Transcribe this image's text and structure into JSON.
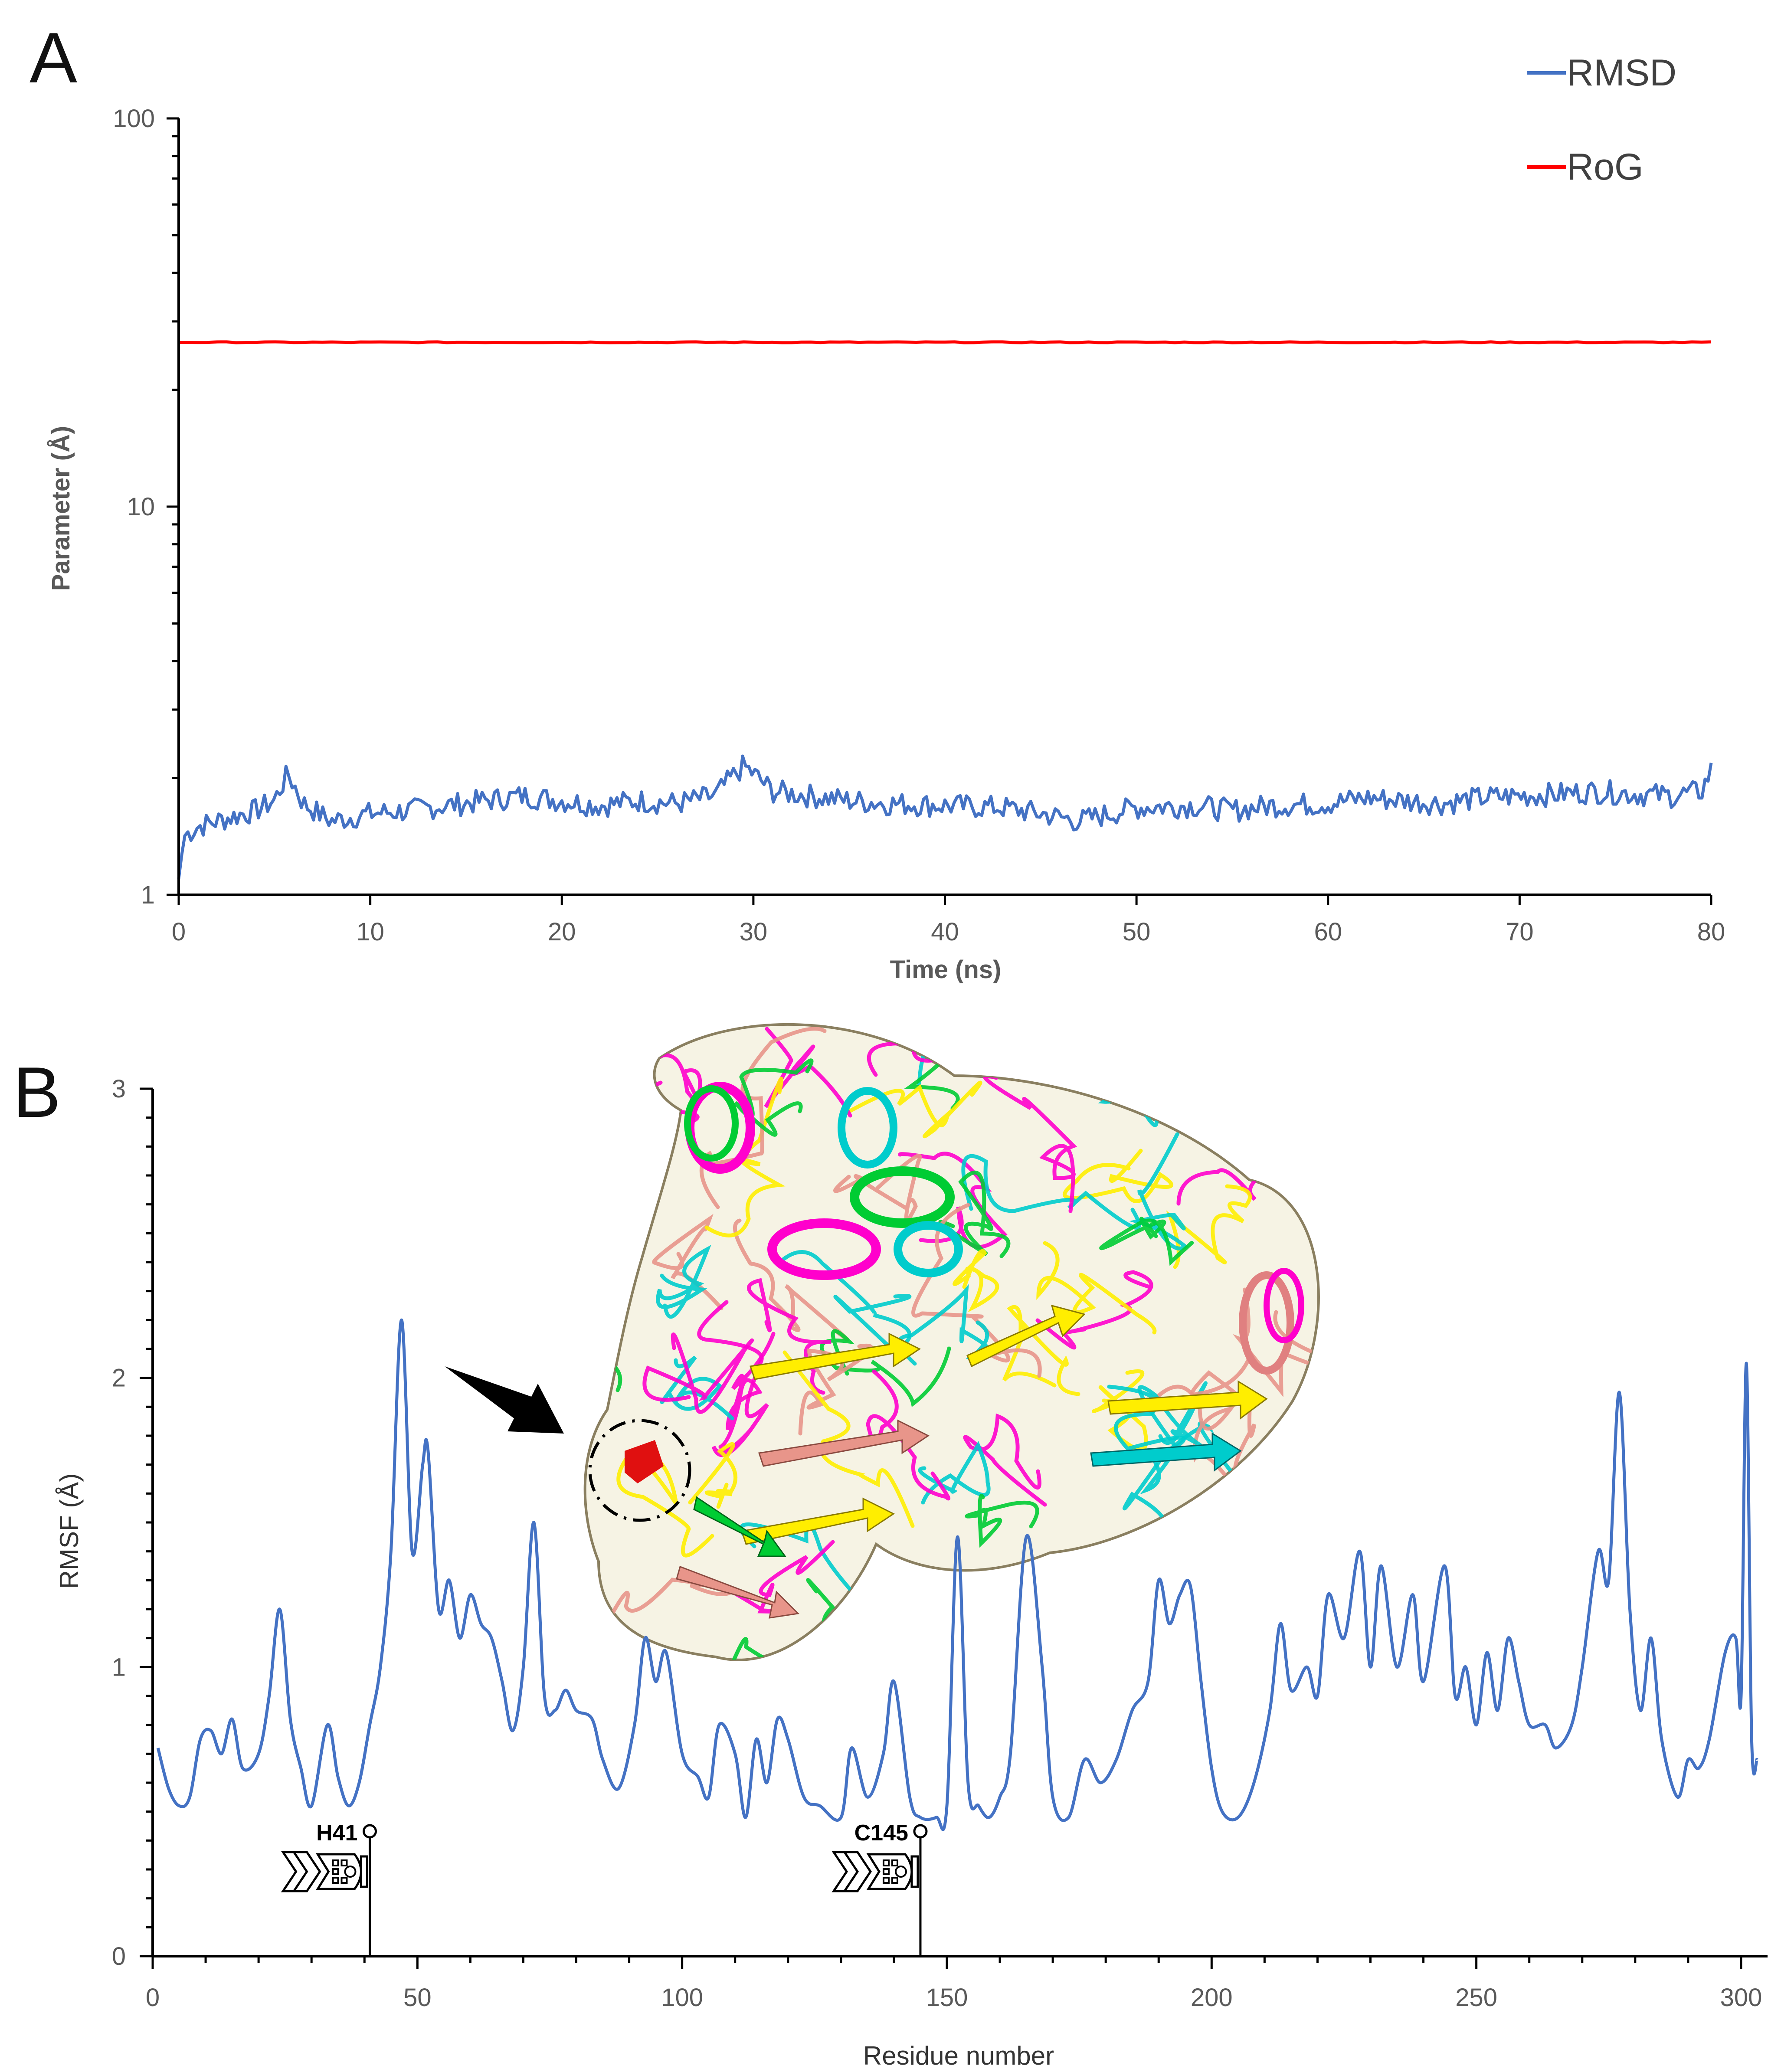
{
  "panels": {
    "a_label": "A",
    "b_label": "B"
  },
  "colors": {
    "rmsd": "#4472C4",
    "rog": "#FF0000",
    "rmsf": "#4472C4",
    "axis": "#000000",
    "text": "#595959"
  },
  "chart_data": [
    {
      "id": "panel-A",
      "type": "line",
      "title": "",
      "xlabel": "Time (ns)",
      "ylabel": "Parameter (Å)",
      "yscale": "log",
      "xlim": [
        0,
        80
      ],
      "ylim": [
        1,
        100
      ],
      "x_ticks": [
        0,
        10,
        20,
        30,
        40,
        50,
        60,
        70,
        80
      ],
      "y_ticks": [
        1,
        10,
        100
      ],
      "y_tick_labels": [
        "1",
        "10",
        "100"
      ],
      "legend": {
        "placement": "top-right",
        "entries": [
          "RMSD",
          "RoG"
        ]
      },
      "series": [
        {
          "name": "RMSD",
          "x": [
            0,
            0.3,
            1,
            2,
            3,
            4,
            5,
            5.7,
            6.5,
            7.5,
            8,
            10,
            12,
            14,
            16,
            18,
            20,
            22,
            24,
            26,
            28,
            29.5,
            31,
            33,
            35,
            37,
            40,
            43,
            45,
            47,
            50,
            53,
            55,
            57,
            60,
            62,
            64,
            66,
            68,
            70,
            72,
            74,
            76,
            78,
            79.5,
            80
          ],
          "y": [
            1.1,
            1.42,
            1.5,
            1.55,
            1.6,
            1.65,
            1.75,
            2.05,
            1.72,
            1.6,
            1.55,
            1.62,
            1.65,
            1.7,
            1.75,
            1.8,
            1.75,
            1.7,
            1.75,
            1.72,
            1.8,
            2.15,
            1.85,
            1.8,
            1.75,
            1.72,
            1.7,
            1.68,
            1.62,
            1.55,
            1.68,
            1.7,
            1.65,
            1.7,
            1.72,
            1.78,
            1.75,
            1.72,
            1.78,
            1.8,
            1.82,
            1.85,
            1.82,
            1.8,
            1.85,
            2.1
          ]
        },
        {
          "name": "RoG",
          "x": [
            0,
            80
          ],
          "y": [
            26.5,
            26.5
          ]
        }
      ]
    },
    {
      "id": "panel-B",
      "type": "line",
      "title": "",
      "xlabel": "Residue number",
      "ylabel": "RMSF (Å)",
      "xlim": [
        0,
        305
      ],
      "ylim": [
        0,
        3
      ],
      "x_ticks": [
        0,
        50,
        100,
        150,
        200,
        250,
        300
      ],
      "y_ticks": [
        0,
        1,
        2,
        3
      ],
      "annotations": [
        {
          "label": "H41",
          "x": 41
        },
        {
          "label": "C145",
          "x": 145
        }
      ],
      "series": [
        {
          "name": "RMSF",
          "x": [
            1,
            3,
            5,
            7,
            9,
            11,
            13,
            15,
            17,
            20,
            22,
            24,
            26,
            28,
            30,
            33,
            35,
            37,
            39,
            41,
            43,
            45,
            47,
            49,
            51,
            52,
            54,
            56,
            58,
            60,
            62,
            64,
            66,
            68,
            70,
            72,
            74,
            76,
            78,
            80,
            83,
            85,
            88,
            91,
            93,
            95,
            97,
            100,
            103,
            105,
            107,
            110,
            112,
            114,
            116,
            118,
            120,
            123,
            126,
            130,
            132,
            135,
            138,
            140,
            143,
            145,
            148,
            150,
            152,
            154,
            156,
            158,
            160,
            162,
            165,
            168,
            170,
            173,
            176,
            179,
            182,
            185,
            188,
            190,
            192,
            194,
            196,
            198,
            200,
            202,
            205,
            208,
            211,
            213,
            215,
            218,
            220,
            222,
            225,
            228,
            230,
            232,
            235,
            238,
            240,
            244,
            246,
            248,
            250,
            252,
            254,
            256,
            258,
            260,
            263,
            265,
            268,
            270,
            273,
            275,
            277,
            279,
            281,
            283,
            285,
            288,
            290,
            292,
            294,
            297,
            299,
            300,
            301,
            302,
            303
          ],
          "y": [
            0.72,
            0.58,
            0.52,
            0.55,
            0.75,
            0.78,
            0.7,
            0.82,
            0.65,
            0.7,
            0.9,
            1.2,
            0.82,
            0.65,
            0.52,
            0.8,
            0.62,
            0.52,
            0.6,
            0.8,
            1.0,
            1.4,
            2.2,
            1.4,
            1.7,
            1.75,
            1.2,
            1.3,
            1.1,
            1.25,
            1.15,
            1.1,
            0.95,
            0.78,
            1.0,
            1.5,
            0.9,
            0.85,
            0.92,
            0.85,
            0.82,
            0.68,
            0.58,
            0.8,
            1.1,
            0.95,
            1.05,
            0.7,
            0.62,
            0.55,
            0.8,
            0.7,
            0.48,
            0.75,
            0.6,
            0.82,
            0.75,
            0.55,
            0.52,
            0.48,
            0.72,
            0.55,
            0.7,
            0.95,
            0.55,
            0.48,
            0.48,
            0.52,
            1.45,
            0.6,
            0.52,
            0.48,
            0.55,
            0.7,
            1.45,
            1.0,
            0.55,
            0.48,
            0.68,
            0.6,
            0.68,
            0.85,
            0.95,
            1.3,
            1.15,
            1.25,
            1.28,
            0.95,
            0.65,
            0.5,
            0.48,
            0.6,
            0.85,
            1.15,
            0.92,
            1.0,
            0.9,
            1.25,
            1.1,
            1.4,
            1.0,
            1.35,
            1.0,
            1.25,
            0.95,
            1.35,
            0.9,
            1.0,
            0.8,
            1.05,
            0.85,
            1.1,
            0.95,
            0.8,
            0.8,
            0.72,
            0.8,
            1.0,
            1.4,
            1.3,
            1.95,
            1.2,
            0.85,
            1.1,
            0.75,
            0.55,
            0.68,
            0.65,
            0.75,
            1.05,
            1.1,
            0.9,
            2.05,
            0.75,
            0.68
          ]
        }
      ]
    }
  ]
}
